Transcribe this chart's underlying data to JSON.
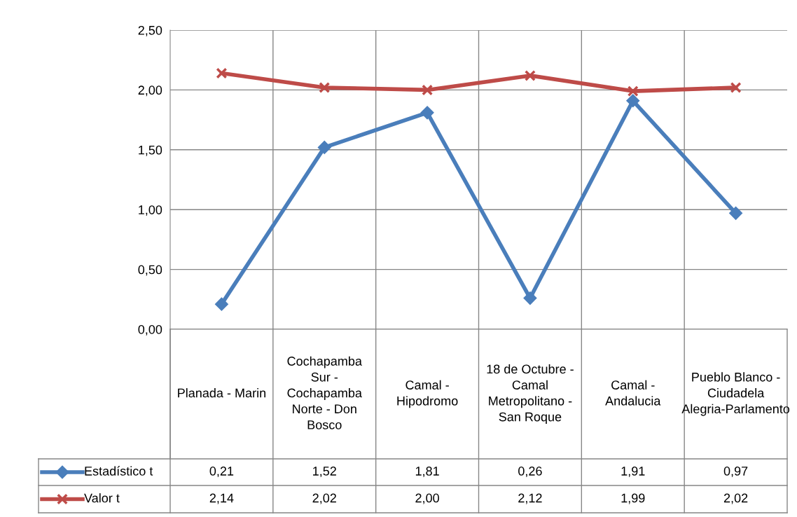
{
  "chart_data": {
    "type": "line",
    "categories": [
      "Planada - Marin",
      "Cochapamba Sur - Cochapamba Norte - Don Bosco",
      "Camal - Hipodromo",
      "18 de Octubre - Camal Metropolitano - San Roque",
      "Camal - Andalucia",
      "Pueblo Blanco - Ciudadela Alegria-Parlamento"
    ],
    "series": [
      {
        "name": "Estadístico t",
        "color": "#4a7ebb",
        "marker": "diamond",
        "values": [
          0.21,
          1.52,
          1.81,
          0.26,
          1.91,
          0.97
        ],
        "value_labels": [
          "0,21",
          "1,52",
          "1,81",
          "0,26",
          "1,91",
          "0,97"
        ]
      },
      {
        "name": "Valor t",
        "color": "#be4b48",
        "marker": "cross",
        "values": [
          2.14,
          2.02,
          2.0,
          2.12,
          1.99,
          2.02
        ],
        "value_labels": [
          "2,14",
          "2,02",
          "2,00",
          "2,12",
          "1,99",
          "2,02"
        ]
      }
    ],
    "ylim": [
      0,
      2.5
    ],
    "yticks": [
      {
        "value": 0,
        "label": "0,00"
      },
      {
        "value": 0.5,
        "label": "0,50"
      },
      {
        "value": 1,
        "label": "1,00"
      },
      {
        "value": 1.5,
        "label": "1,50"
      },
      {
        "value": 2,
        "label": "2,00"
      },
      {
        "value": 2.5,
        "label": "2,50"
      }
    ],
    "grid": true,
    "legend": "bottom",
    "line_style": "solid"
  }
}
